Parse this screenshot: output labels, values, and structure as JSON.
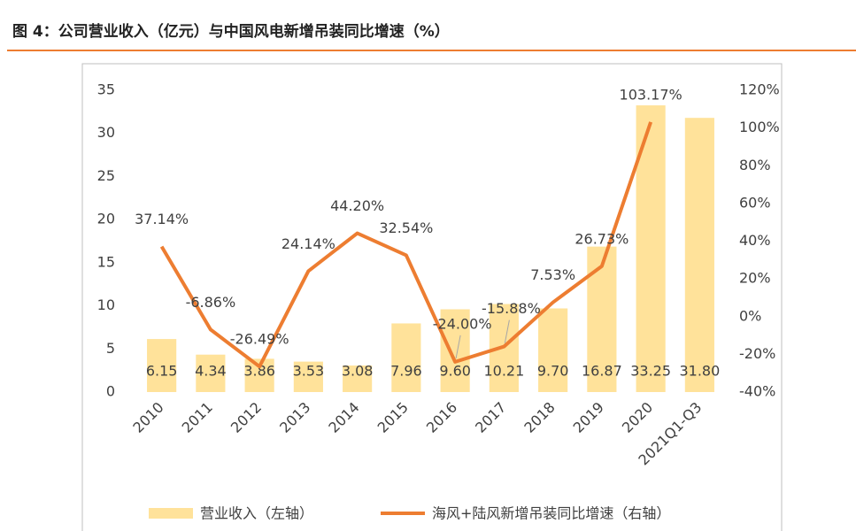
{
  "chart_data": {
    "type": "combo",
    "title": "图 4：公司营业收入（亿元）与中国风电新增吊装同比增速（%）",
    "categories": [
      "2010",
      "2011",
      "2012",
      "2013",
      "2014",
      "2015",
      "2016",
      "2017",
      "2018",
      "2019",
      "2020",
      "2021Q1-Q3"
    ],
    "series": [
      {
        "name": "营业收入（左轴）",
        "kind": "bar",
        "color": "#FFE29A",
        "values": [
          6.15,
          4.34,
          3.86,
          3.53,
          3.08,
          7.96,
          9.6,
          10.21,
          9.7,
          16.87,
          33.25,
          31.8
        ],
        "value_labels": [
          "6.15",
          "4.34",
          "3.86",
          "3.53",
          "3.08",
          "7.96",
          "9.60",
          "10.21",
          "9.70",
          "16.87",
          "33.25",
          "31.80"
        ]
      },
      {
        "name": "海风+陆风新增吊装同比增速（右轴）",
        "kind": "line",
        "axis": "y2",
        "color": "#ED7D31",
        "values": [
          37.14,
          -6.86,
          -26.49,
          24.14,
          44.2,
          32.54,
          -24.0,
          -15.88,
          7.53,
          26.73,
          103.17,
          null
        ],
        "value_labels": [
          "37.14%",
          "-6.86%",
          "-26.49%",
          "24.14%",
          "44.20%",
          "32.54%",
          "-24.00%",
          "-15.88%",
          "7.53%",
          "26.73%",
          "103.17%",
          null
        ]
      }
    ],
    "ylim": [
      0,
      35
    ],
    "yticks": [
      0,
      5,
      10,
      15,
      20,
      25,
      30,
      35
    ],
    "y2lim": [
      -40,
      120
    ],
    "y2ticks": [
      {
        "value": -40,
        "label": "-40%"
      },
      {
        "value": -20,
        "label": "-20%"
      },
      {
        "value": 0,
        "label": "0%"
      },
      {
        "value": 20,
        "label": "20%"
      },
      {
        "value": 40,
        "label": "40%"
      },
      {
        "value": 60,
        "label": "60%"
      },
      {
        "value": 80,
        "label": "80%"
      },
      {
        "value": 100,
        "label": "100%"
      },
      {
        "value": 120,
        "label": "120%"
      }
    ]
  }
}
